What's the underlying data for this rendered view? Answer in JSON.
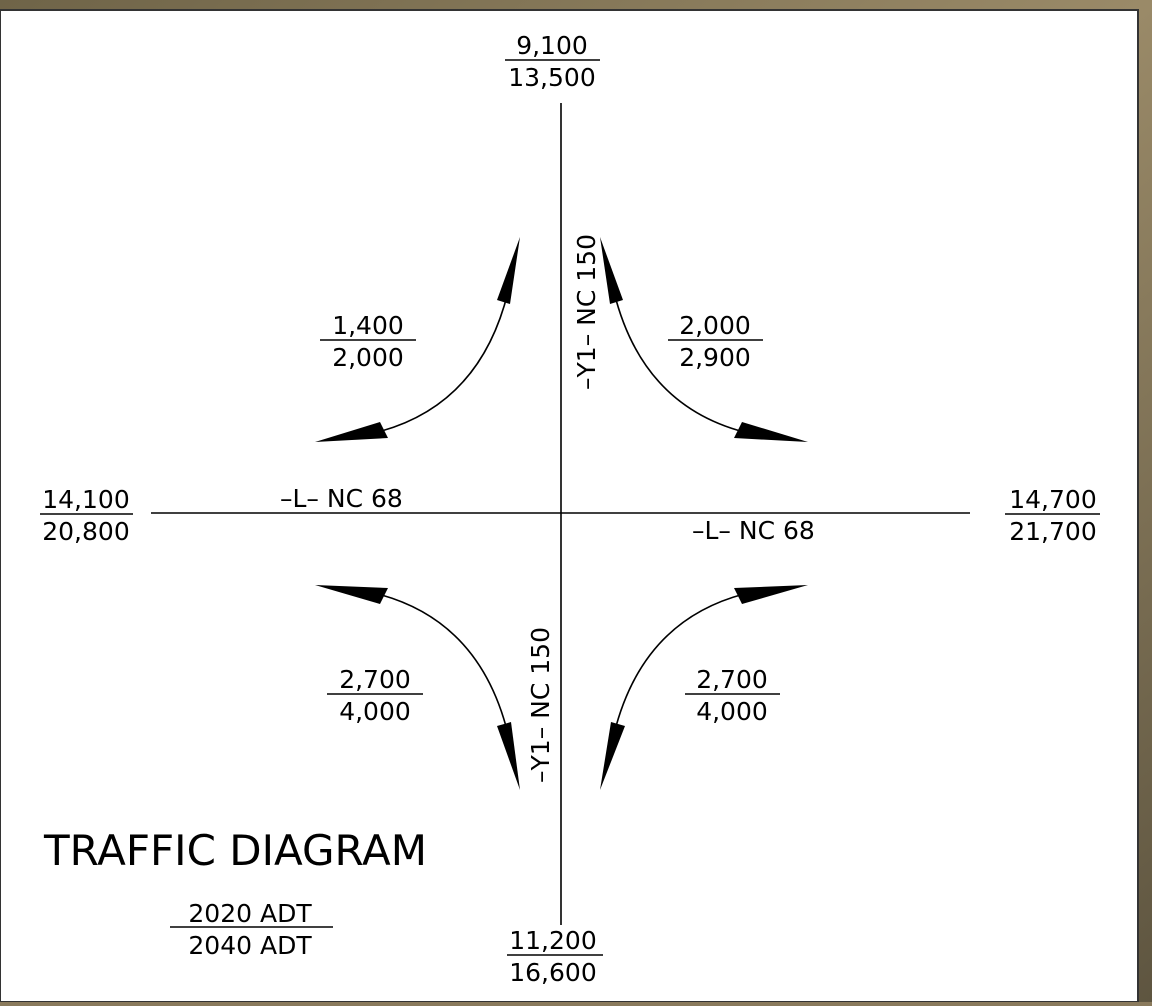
{
  "title": "TRAFFIC DIAGRAM",
  "legend": {
    "top": "2020 ADT",
    "bottom": "2040 ADT"
  },
  "road_labels": {
    "north": "–Y1– NC 150",
    "south": "–Y1– NC 150",
    "west": "–L– NC 68",
    "east": "–L– NC 68"
  },
  "volumes": {
    "north": {
      "top": "9,100",
      "bottom": "13,500"
    },
    "south": {
      "top": "11,200",
      "bottom": "16,600"
    },
    "west": {
      "top": "14,100",
      "bottom": "20,800"
    },
    "east": {
      "top": "14,700",
      "bottom": "21,700"
    },
    "northwest": {
      "top": "1,400",
      "bottom": "2,000"
    },
    "northeast": {
      "top": "2,000",
      "bottom": "2,900"
    },
    "southwest": {
      "top": "2,700",
      "bottom": "4,000"
    },
    "southeast": {
      "top": "2,700",
      "bottom": "4,000"
    }
  }
}
